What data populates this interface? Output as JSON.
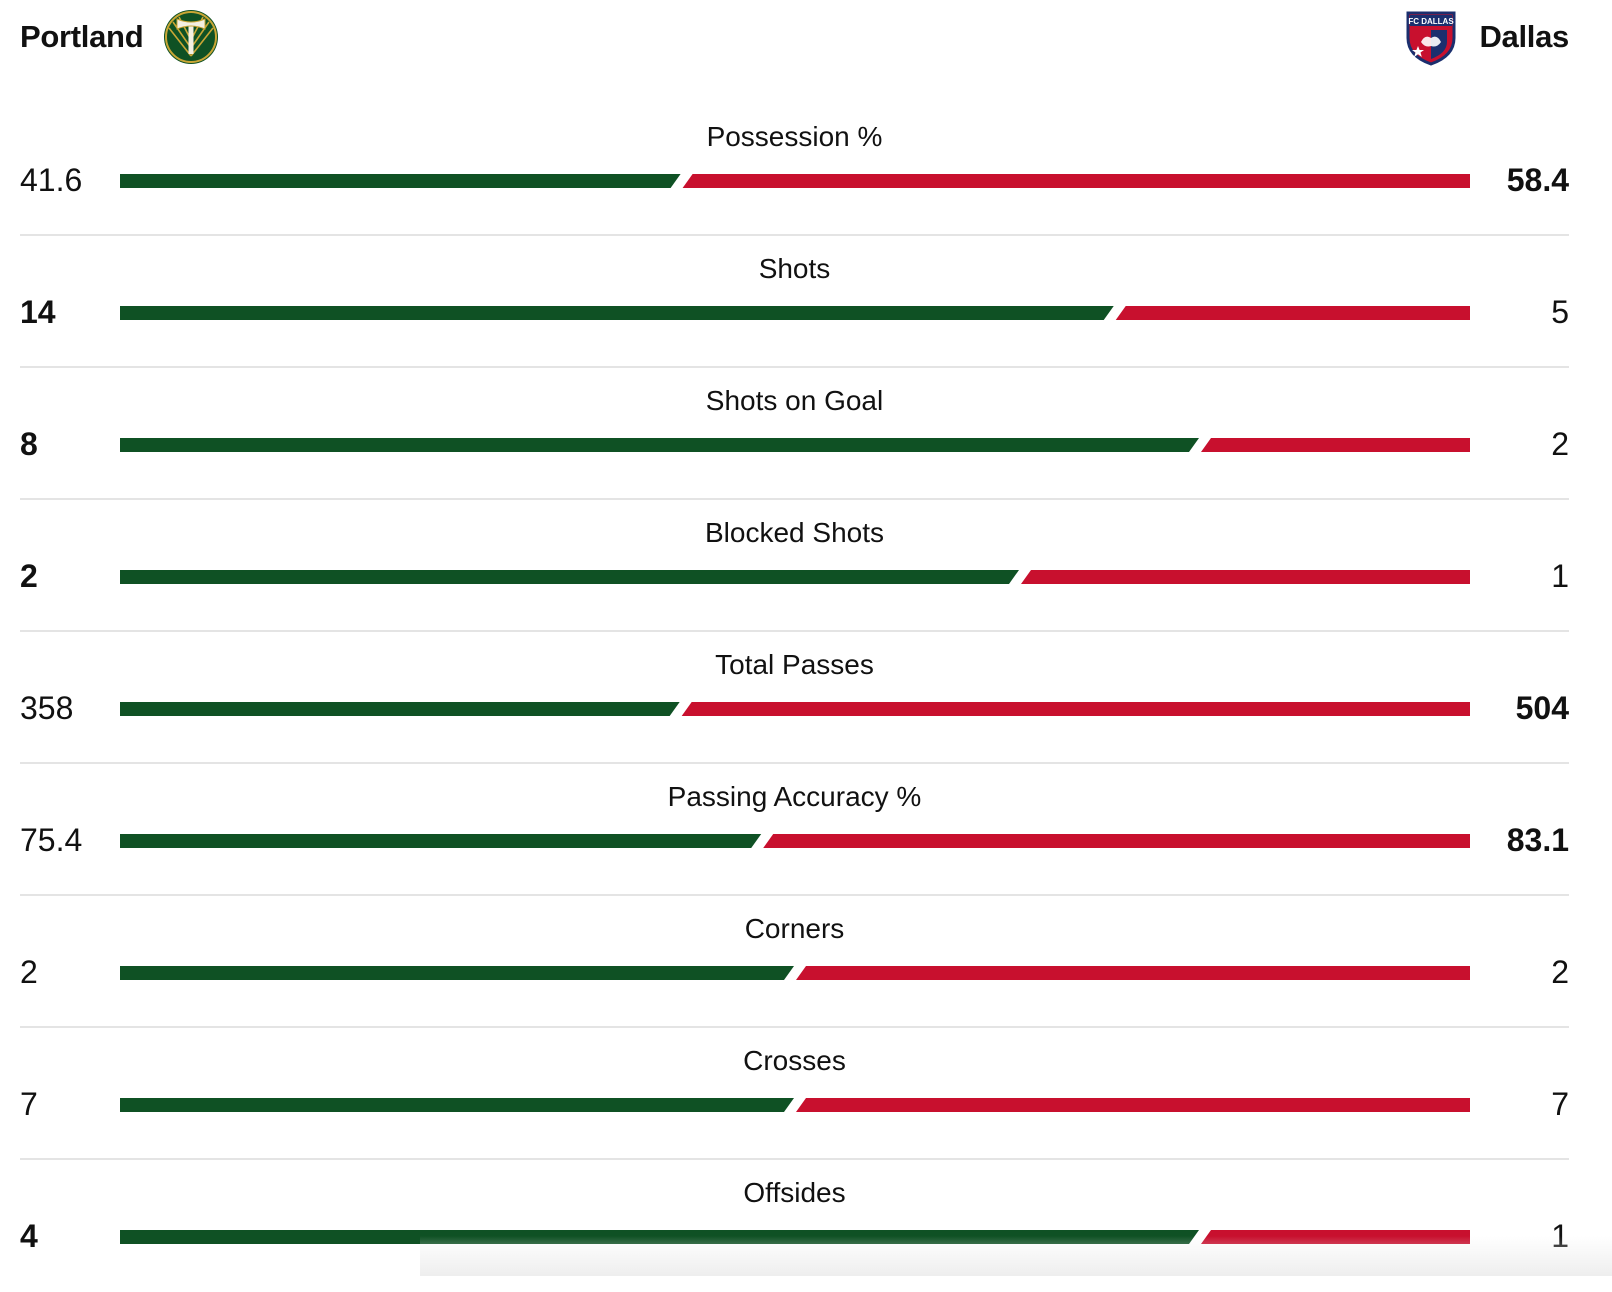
{
  "home_team": {
    "name": "Portland",
    "logo_icon": "portland-timbers-axe-icon",
    "color": "#0f5124"
  },
  "away_team": {
    "name": "Dallas",
    "logo_icon": "fc-dallas-crest-icon",
    "logo_text": "FC DALLAS",
    "color": "#c8102e"
  },
  "stats": [
    {
      "label": "Possession %",
      "home": "41.6",
      "away": "58.4",
      "leader": "away"
    },
    {
      "label": "Shots",
      "home": "14",
      "away": "5",
      "leader": "home"
    },
    {
      "label": "Shots on Goal",
      "home": "8",
      "away": "2",
      "leader": "home"
    },
    {
      "label": "Blocked Shots",
      "home": "2",
      "away": "1",
      "leader": "home"
    },
    {
      "label": "Total Passes",
      "home": "358",
      "away": "504",
      "leader": "away"
    },
    {
      "label": "Passing Accuracy %",
      "home": "75.4",
      "away": "83.1",
      "leader": "away"
    },
    {
      "label": "Corners",
      "home": "2",
      "away": "2",
      "leader": "none"
    },
    {
      "label": "Crosses",
      "home": "7",
      "away": "7",
      "leader": "none"
    },
    {
      "label": "Offsides",
      "home": "4",
      "away": "1",
      "leader": "home"
    }
  ]
}
